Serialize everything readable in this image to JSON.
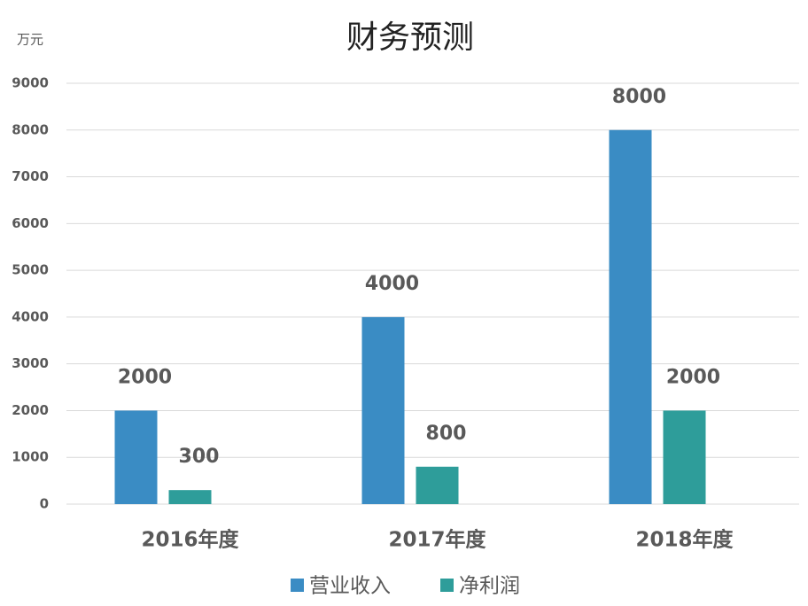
{
  "chart_data": {
    "type": "bar",
    "title": "财务预测",
    "y_unit": "万元",
    "categories": [
      "2016年度",
      "2017年度",
      "2018年度"
    ],
    "series": [
      {
        "name": "营业收入",
        "color": "#3a8cc4",
        "values": [
          2000,
          4000,
          8000
        ]
      },
      {
        "name": "净利润",
        "color": "#2e9d9a",
        "values": [
          300,
          800,
          2000
        ]
      }
    ],
    "ylim": [
      0,
      9000
    ],
    "yticks": [
      0,
      1000,
      2000,
      3000,
      4000,
      5000,
      6000,
      7000,
      8000,
      9000
    ],
    "grid": true
  }
}
